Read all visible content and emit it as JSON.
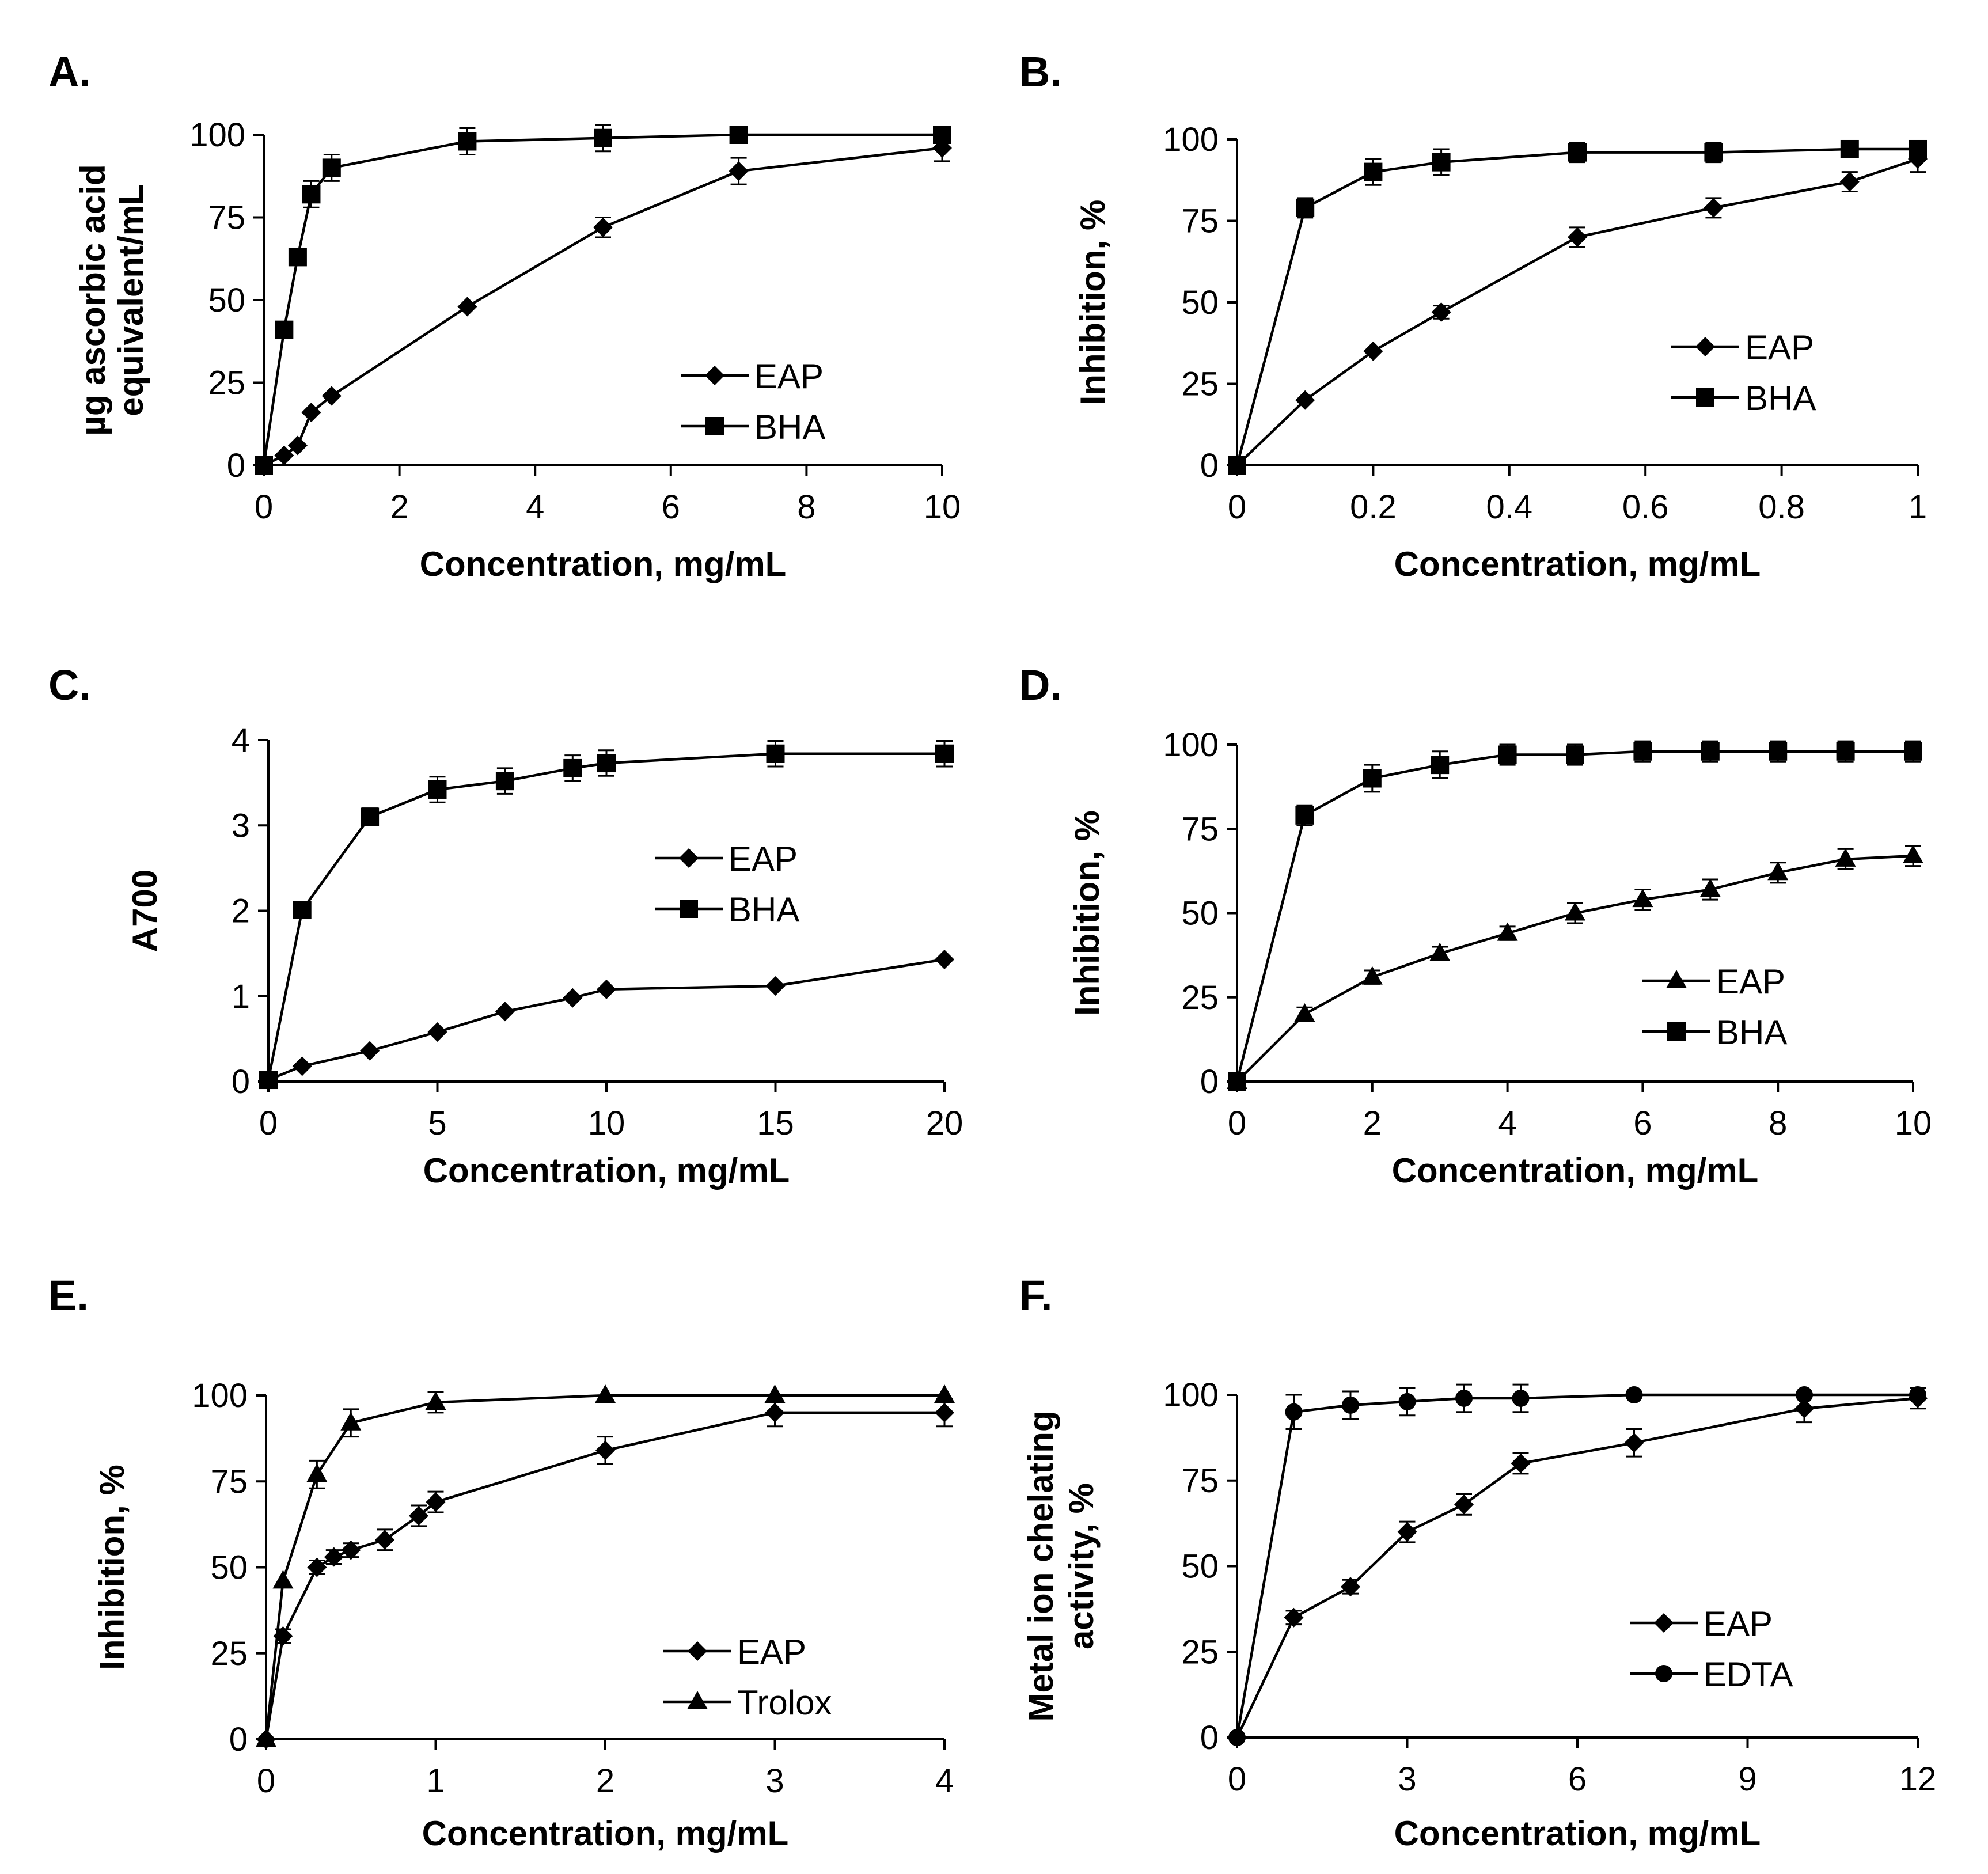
{
  "colors": {
    "line": "#000000",
    "background": "#ffffff"
  },
  "chart_data": [
    {
      "panel": "A.",
      "type": "line",
      "xlabel": "Concentration, mg/mL",
      "ylabel": [
        "µg ascorbic acid",
        "equivalent/mL"
      ],
      "xlim": [
        0,
        10
      ],
      "ylim": [
        0,
        100
      ],
      "xticks": [
        "0",
        "2",
        "4",
        "6",
        "8",
        "10"
      ],
      "yticks": [
        "0",
        "25",
        "50",
        "75",
        "100"
      ],
      "xtick_values": [
        0,
        2,
        4,
        6,
        8,
        10
      ],
      "ytick_values": [
        0,
        25,
        50,
        75,
        100
      ],
      "legend_position": "bottom-right",
      "series": [
        {
          "name": "EAP",
          "marker": "diamond",
          "x": [
            0,
            0.3,
            0.5,
            0.7,
            1,
            3,
            5,
            7,
            10
          ],
          "y": [
            0,
            3,
            6,
            16,
            21,
            48,
            72,
            89,
            96
          ],
          "err": [
            0,
            0,
            0,
            0,
            0,
            0,
            3,
            4,
            4
          ]
        },
        {
          "name": "BHA",
          "marker": "square",
          "x": [
            0,
            0.3,
            0.5,
            0.7,
            1,
            3,
            5,
            7,
            10
          ],
          "y": [
            0,
            41,
            63,
            82,
            90,
            98,
            99,
            100,
            100
          ],
          "err": [
            0,
            0,
            0,
            4,
            4,
            4,
            4,
            0,
            0
          ]
        }
      ]
    },
    {
      "panel": "B.",
      "type": "line",
      "xlabel": "Concentration, mg/mL",
      "ylabel": [
        "Inhibition, %"
      ],
      "xlim": [
        0,
        1
      ],
      "ylim": [
        0,
        100
      ],
      "xticks": [
        "0",
        "0.2",
        "0.4",
        "0.6",
        "0.8",
        "1"
      ],
      "yticks": [
        "0",
        "25",
        "50",
        "75",
        "100"
      ],
      "xtick_values": [
        0,
        0.2,
        0.4,
        0.6,
        0.8,
        1
      ],
      "ytick_values": [
        0,
        25,
        50,
        75,
        100
      ],
      "legend_position": "bottom-right",
      "series": [
        {
          "name": "EAP",
          "marker": "diamond",
          "x": [
            0,
            0.1,
            0.2,
            0.3,
            0.5,
            0.7,
            0.9,
            1
          ],
          "y": [
            0,
            20,
            35,
            47,
            70,
            79,
            87,
            94
          ],
          "err": [
            0,
            0,
            0,
            2,
            3,
            3,
            3,
            4
          ]
        },
        {
          "name": "BHA",
          "marker": "square",
          "x": [
            0,
            0.1,
            0.2,
            0.3,
            0.5,
            0.7,
            0.9,
            1
          ],
          "y": [
            0,
            79,
            90,
            93,
            96,
            96,
            97,
            97
          ],
          "err": [
            0,
            3,
            4,
            4,
            3,
            3,
            2,
            2
          ]
        }
      ]
    },
    {
      "panel": "C.",
      "type": "line",
      "xlabel": "Concentration, mg/mL",
      "ylabel": [
        "A700"
      ],
      "xlim": [
        0,
        20
      ],
      "ylim": [
        0,
        4
      ],
      "xticks": [
        "0",
        "5",
        "10",
        "15",
        "20"
      ],
      "yticks": [
        "0",
        "1",
        "2",
        "3",
        "4"
      ],
      "xtick_values": [
        0,
        5,
        10,
        15,
        20
      ],
      "ytick_values": [
        0,
        1,
        2,
        3,
        4
      ],
      "legend_position": "center-right",
      "series": [
        {
          "name": "EAP",
          "marker": "diamond",
          "x": [
            0,
            1,
            3,
            5,
            7,
            9,
            10,
            15,
            20
          ],
          "y": [
            0.02,
            0.18,
            0.36,
            0.58,
            0.82,
            0.98,
            1.08,
            1.12,
            1.43
          ],
          "err": [
            0,
            0,
            0,
            0,
            0,
            0,
            0,
            0,
            0
          ]
        },
        {
          "name": "BHA",
          "marker": "square",
          "x": [
            0,
            1,
            3,
            5,
            7,
            9,
            10,
            15,
            20
          ],
          "y": [
            0.02,
            2.01,
            3.1,
            3.42,
            3.52,
            3.67,
            3.73,
            3.84,
            3.84
          ],
          "err": [
            0,
            0,
            0.1,
            0.15,
            0.15,
            0.15,
            0.15,
            0.15,
            0.15
          ]
        }
      ]
    },
    {
      "panel": "D.",
      "type": "line",
      "xlabel": "Concentration, mg/mL",
      "ylabel": [
        "Inhibition, %"
      ],
      "xlim": [
        0,
        10
      ],
      "ylim": [
        0,
        100
      ],
      "xticks": [
        "0",
        "2",
        "4",
        "6",
        "8",
        "10"
      ],
      "yticks": [
        "0",
        "25",
        "50",
        "75",
        "100"
      ],
      "xtick_values": [
        0,
        2,
        4,
        6,
        8,
        10
      ],
      "ytick_values": [
        0,
        25,
        50,
        75,
        100
      ],
      "legend_position": "bottom-right",
      "series": [
        {
          "name": "EAP",
          "marker": "triangle",
          "x": [
            0,
            1,
            2,
            3,
            4,
            5,
            6,
            7,
            8,
            9,
            10
          ],
          "y": [
            0,
            20,
            31,
            38,
            44,
            50,
            54,
            57,
            62,
            66,
            67
          ],
          "err": [
            0,
            2,
            2,
            2,
            2,
            3,
            3,
            3,
            3,
            3,
            3
          ]
        },
        {
          "name": "BHA",
          "marker": "square",
          "x": [
            0,
            1,
            2,
            3,
            4,
            5,
            6,
            7,
            8,
            9,
            10
          ],
          "y": [
            0,
            79,
            90,
            94,
            97,
            97,
            98,
            98,
            98,
            98,
            98
          ],
          "err": [
            0,
            3,
            4,
            4,
            3,
            3,
            3,
            3,
            3,
            3,
            3
          ]
        }
      ]
    },
    {
      "panel": "E.",
      "type": "line",
      "xlabel": "Concentration, mg/mL",
      "ylabel": [
        "Inhibition, %"
      ],
      "xlim": [
        0,
        4
      ],
      "ylim": [
        0,
        100
      ],
      "xticks": [
        "0",
        "1",
        "2",
        "3",
        "4"
      ],
      "yticks": [
        "0",
        "25",
        "50",
        "75",
        "100"
      ],
      "xtick_values": [
        0,
        1,
        2,
        3,
        4
      ],
      "ytick_values": [
        0,
        25,
        50,
        75,
        100
      ],
      "legend_position": "bottom-right",
      "series": [
        {
          "name": "EAP",
          "marker": "diamond",
          "x": [
            0,
            0.1,
            0.3,
            0.4,
            0.5,
            0.7,
            0.9,
            1,
            2,
            3,
            4
          ],
          "y": [
            0,
            30,
            50,
            53,
            55,
            58,
            65,
            69,
            84,
            95,
            95
          ],
          "err": [
            0,
            2,
            2,
            2,
            2,
            3,
            3,
            3,
            4,
            4,
            4
          ]
        },
        {
          "name": "Trolox",
          "marker": "triangle",
          "x": [
            0,
            0.1,
            0.3,
            0.5,
            1,
            2,
            3,
            4
          ],
          "y": [
            0,
            46,
            77,
            92,
            98,
            100,
            100,
            100
          ],
          "err": [
            0,
            0,
            4,
            4,
            3,
            0,
            0,
            0
          ]
        }
      ]
    },
    {
      "panel": "F.",
      "type": "line",
      "xlabel": "Concentration, mg/mL",
      "ylabel": [
        "Metal ion chelating",
        "activity, %"
      ],
      "xlim": [
        0,
        12
      ],
      "ylim": [
        0,
        100
      ],
      "xticks": [
        "0",
        "3",
        "6",
        "9",
        "12"
      ],
      "yticks": [
        "0",
        "25",
        "50",
        "75",
        "100"
      ],
      "xtick_values": [
        0,
        3,
        6,
        9,
        12
      ],
      "ytick_values": [
        0,
        25,
        50,
        75,
        100
      ],
      "legend_position": "bottom-right",
      "series": [
        {
          "name": "EAP",
          "marker": "diamond",
          "x": [
            0,
            1,
            2,
            3,
            4,
            5,
            7,
            10,
            12
          ],
          "y": [
            0,
            35,
            44,
            60,
            68,
            80,
            86,
            96,
            99
          ],
          "err": [
            0,
            2,
            2,
            3,
            3,
            3,
            4,
            4,
            3
          ]
        },
        {
          "name": "EDTA",
          "marker": "circle",
          "x": [
            0,
            1,
            2,
            3,
            4,
            5,
            7,
            10,
            12
          ],
          "y": [
            0,
            95,
            97,
            98,
            99,
            99,
            100,
            100,
            100
          ],
          "err": [
            0,
            5,
            4,
            4,
            4,
            4,
            0,
            0,
            0
          ]
        }
      ]
    }
  ]
}
